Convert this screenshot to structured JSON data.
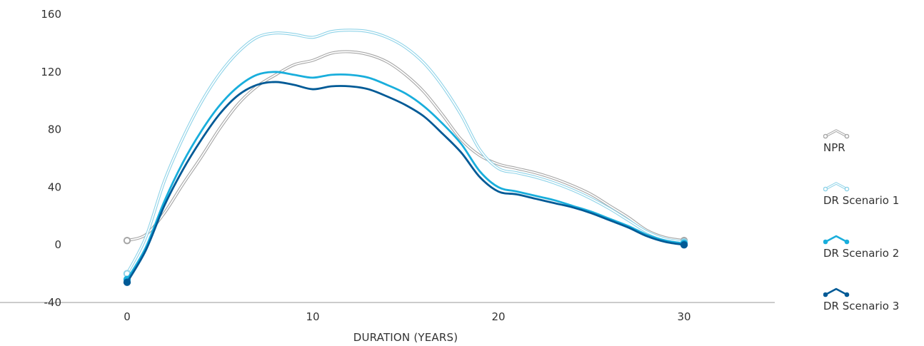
{
  "chart_data": {
    "type": "line",
    "xlabel": "DURATION (YEARS)",
    "ylabel": "",
    "xlim": [
      -6.5,
      34.5
    ],
    "ylim": [
      -40,
      160
    ],
    "xticks": [
      0,
      10,
      20,
      30
    ],
    "yticks": [
      -40,
      0,
      40,
      80,
      120,
      160
    ],
    "x": [
      0,
      1,
      2,
      3,
      4,
      5,
      6,
      7,
      8,
      9,
      10,
      11,
      12,
      13,
      14,
      15,
      16,
      17,
      18,
      19,
      20,
      21,
      22,
      23,
      24,
      25,
      26,
      27,
      28,
      29,
      30
    ],
    "series": [
      {
        "name": "NPR",
        "color": "#a6a6a6",
        "style": "outline",
        "values": [
          3,
          7,
          22,
          42,
          61,
          81,
          98,
          110,
          118,
          125,
          128,
          133,
          134,
          132,
          127,
          118,
          106,
          90,
          73,
          62,
          56,
          53,
          50,
          46,
          41,
          35,
          27,
          19,
          10,
          5,
          3
        ]
      },
      {
        "name": "DR Scenario 1",
        "color": "#8fd3e8",
        "style": "outline",
        "values": [
          -20,
          5,
          44,
          74,
          99,
          119,
          134,
          144,
          147,
          146,
          144,
          148,
          149,
          148,
          144,
          137,
          126,
          110,
          90,
          66,
          53,
          50,
          47,
          43,
          38,
          32,
          25,
          17,
          9,
          4,
          2
        ]
      },
      {
        "name": "DR Scenario 2",
        "color": "#19aedc",
        "style": "solid",
        "values": [
          -24,
          -2,
          30,
          57,
          79,
          97,
          110,
          118,
          120,
          118,
          116,
          118,
          118,
          116,
          111,
          105,
          96,
          84,
          70,
          51,
          40,
          37,
          34,
          31,
          27,
          23,
          18,
          13,
          7,
          3,
          1
        ]
      },
      {
        "name": "DR Scenario 3",
        "color": "#005a96",
        "style": "solid",
        "values": [
          -26,
          -4,
          27,
          52,
          73,
          91,
          104,
          111,
          113,
          111,
          108,
          110,
          110,
          108,
          103,
          97,
          89,
          77,
          64,
          47,
          37,
          35,
          32,
          29,
          26,
          22,
          17,
          12,
          6,
          2,
          0
        ]
      }
    ]
  }
}
